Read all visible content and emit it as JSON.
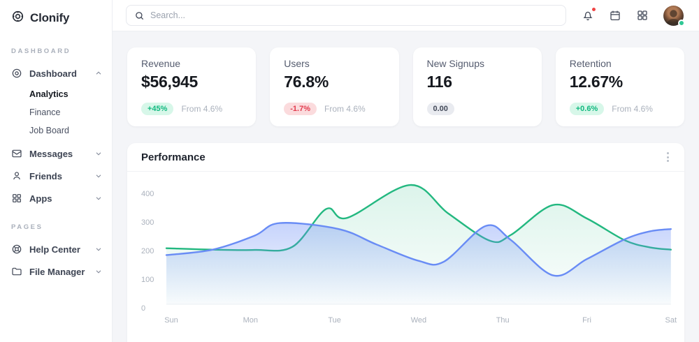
{
  "brand": {
    "name": "Clonify"
  },
  "sidebar": {
    "sections": [
      {
        "label": "DASHBOARD",
        "items": [
          {
            "label": "Dashboard",
            "icon": "dashboard-icon",
            "expanded": true,
            "children": [
              {
                "label": "Analytics",
                "active": true
              },
              {
                "label": "Finance",
                "active": false
              },
              {
                "label": "Job Board",
                "active": false
              }
            ]
          },
          {
            "label": "Messages",
            "icon": "envelope-icon"
          },
          {
            "label": "Friends",
            "icon": "user-icon"
          },
          {
            "label": "Apps",
            "icon": "grid-icon"
          }
        ]
      },
      {
        "label": "PAGES",
        "items": [
          {
            "label": "Help Center",
            "icon": "lifebuoy-icon"
          },
          {
            "label": "File Manager",
            "icon": "folder-icon"
          }
        ]
      }
    ]
  },
  "topbar": {
    "search_placeholder": "Search...",
    "has_notification": true
  },
  "stats": [
    {
      "title": "Revenue",
      "value": "$56,945",
      "badge": "+45%",
      "badge_type": "positive",
      "note": "From 4.6%"
    },
    {
      "title": "Users",
      "value": "76.8%",
      "badge": "-1.7%",
      "badge_type": "negative",
      "note": "From 4.6%"
    },
    {
      "title": "New Signups",
      "value": "116",
      "badge": "0.00",
      "badge_type": "neutral",
      "note": ""
    },
    {
      "title": "Retention",
      "value": "12.67%",
      "badge": "+0.6%",
      "badge_type": "positive",
      "note": "From 4.6%"
    }
  ],
  "chart_data": {
    "type": "area",
    "title": "Performance",
    "categories": [
      "Sun",
      "Mon",
      "Tue",
      "Wed",
      "Thu",
      "Fri",
      "Sat"
    ],
    "y_ticks": [
      0,
      100,
      200,
      300,
      400
    ],
    "ylim": [
      0,
      440
    ],
    "grid": false,
    "legend": "none",
    "series": [
      {
        "name": "green-series",
        "color": "#23b880",
        "values_at_labels": [
          196,
          190,
          315,
          400,
          235,
          300,
          191
        ],
        "points": [
          [
            0,
            196
          ],
          [
            0.55,
            191
          ],
          [
            1.05,
            190
          ],
          [
            1.5,
            201
          ],
          [
            1.9,
            333
          ],
          [
            2.15,
            302
          ],
          [
            2.9,
            417
          ],
          [
            3.35,
            318
          ],
          [
            3.85,
            222
          ],
          [
            4.1,
            243
          ],
          [
            4.6,
            347
          ],
          [
            5.0,
            300
          ],
          [
            5.45,
            224
          ],
          [
            5.75,
            199
          ],
          [
            6,
            191
          ]
        ]
      },
      {
        "name": "blue-series",
        "color": "#698cf5",
        "values_at_labels": [
          172,
          238,
          263,
          152,
          240,
          158,
          263
        ],
        "points": [
          [
            0,
            172
          ],
          [
            0.55,
            191
          ],
          [
            1.05,
            240
          ],
          [
            1.35,
            284
          ],
          [
            2.05,
            263
          ],
          [
            2.5,
            209
          ],
          [
            3.0,
            152
          ],
          [
            3.3,
            149
          ],
          [
            3.8,
            274
          ],
          [
            4.1,
            224
          ],
          [
            4.6,
            101
          ],
          [
            5.0,
            158
          ],
          [
            5.45,
            227
          ],
          [
            5.75,
            255
          ],
          [
            6,
            263
          ]
        ]
      }
    ]
  },
  "colors": {
    "accent_green": "#23b880",
    "accent_blue": "#698cf5",
    "positive_text": "#10b97f",
    "positive_bg": "#d7f7e9",
    "negative_text": "#e23b4e",
    "negative_bg": "#fbdbdd",
    "neutral_bg": "#e9ebf0",
    "notification_red": "#ef4444",
    "online_green": "#2fc795",
    "page_bg": "#f4f5f8"
  }
}
